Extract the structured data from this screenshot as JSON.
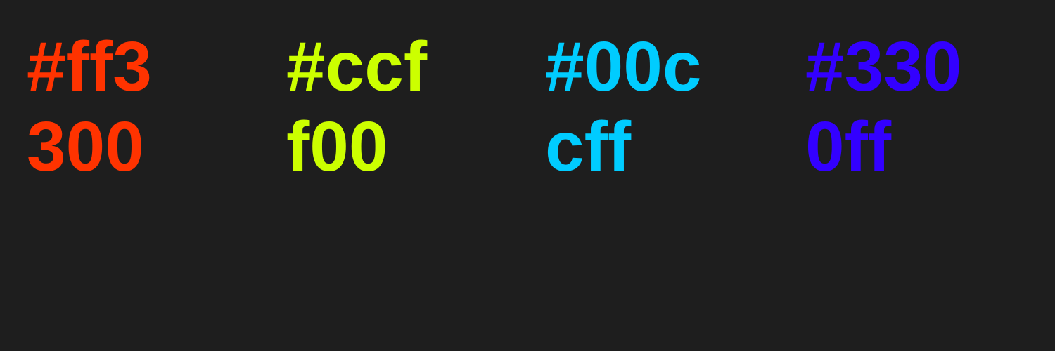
{
  "swatches": [
    {
      "line1": "#ff3",
      "line2": "300",
      "color": "#ff3300"
    },
    {
      "line1": "#ccf",
      "line2": "f00",
      "color": "#ccff00"
    },
    {
      "line1": "#00c",
      "line2": "cff",
      "color": "#00ccff"
    },
    {
      "line1": "#330",
      "line2": "0ff",
      "color": "#3300ff"
    }
  ],
  "background": "#1e1e1e"
}
